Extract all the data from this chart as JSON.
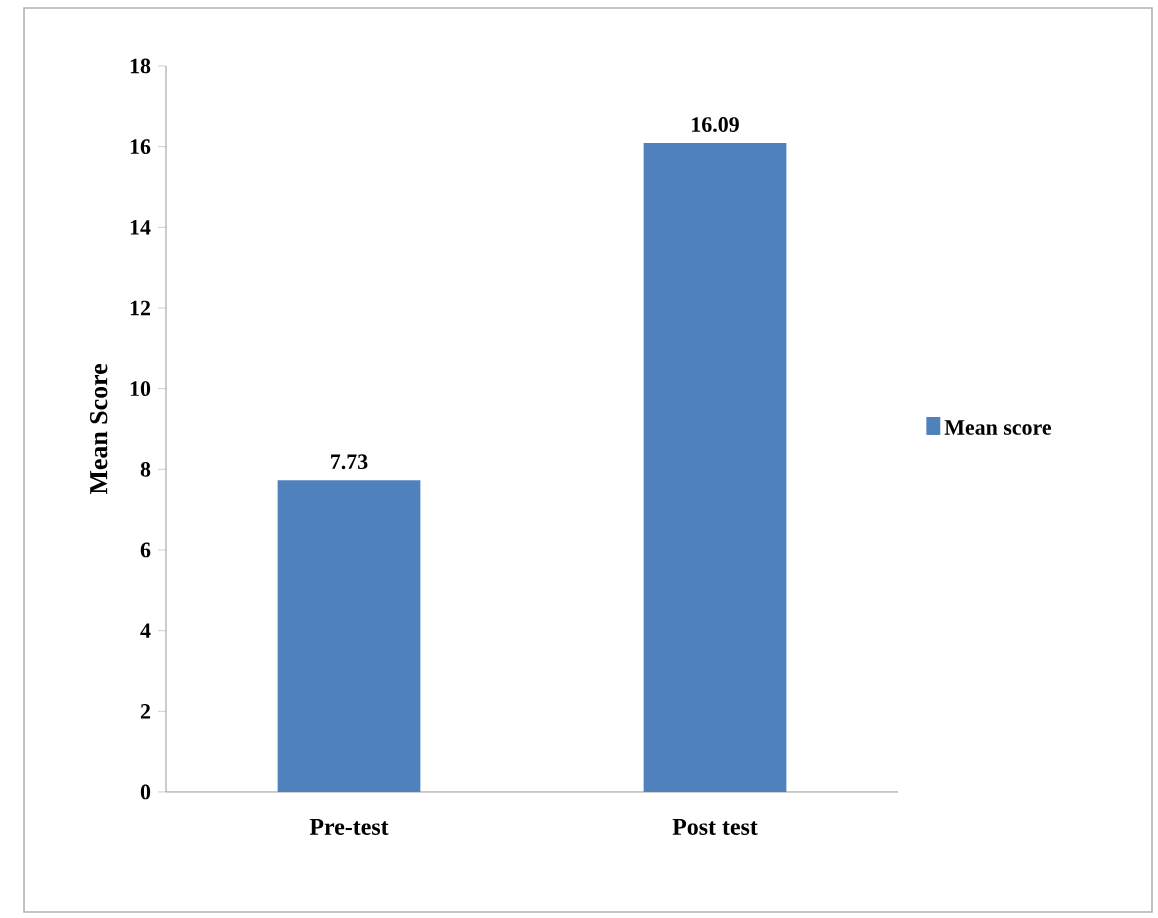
{
  "chart_data": {
    "type": "bar",
    "ylabel": "Mean Score",
    "categories": [
      "Pre-test",
      "Post test"
    ],
    "series": [
      {
        "name": "Mean score",
        "color": "#4f81bd",
        "values": [
          7.73,
          16.09
        ]
      }
    ],
    "ylim": [
      0,
      18
    ],
    "yticks": [
      0,
      2,
      4,
      6,
      8,
      10,
      12,
      14,
      16,
      18
    ],
    "data_labels": true,
    "legend": "right"
  }
}
